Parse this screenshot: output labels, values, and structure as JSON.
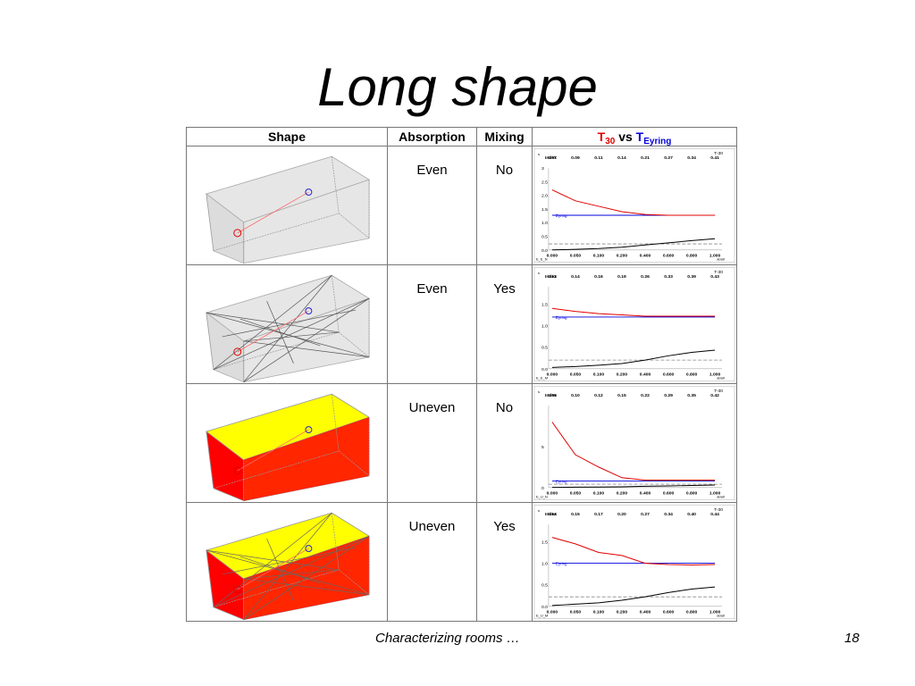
{
  "slide": {
    "title": "Long shape",
    "footer_text": "Characterizing rooms …",
    "page_number": "18"
  },
  "table": {
    "headers": {
      "shape": "Shape",
      "absorption": "Absorption",
      "mixing": "Mixing",
      "t30": "T",
      "t30_sub": "30",
      "vs": "vs",
      "teyring": "T",
      "teyring_sub": "Eyring"
    },
    "rows": [
      {
        "absorption": "Even",
        "mixing": "No",
        "box_style": "plain",
        "scatter": false,
        "graph": {
          "index_label": "Index",
          "index_values": [
            "0.07",
            "0.09",
            "0.11",
            "0.14",
            "0.21",
            "0.27",
            "0.34",
            "0.41"
          ],
          "x_ticks": [
            "0.000",
            "0.050",
            "0.100",
            "0.200",
            "0.400",
            "0.600",
            "0.800",
            "1.000"
          ],
          "y_ticks": [
            "0.0",
            "0.5",
            "1.0",
            "1.5",
            "2.0",
            "2.5",
            "3"
          ],
          "y_max": 3,
          "t30": [
            2.2,
            1.8,
            1.6,
            1.4,
            1.3,
            1.27,
            1.27,
            1.27
          ],
          "eyring": 1.27,
          "index_curve": [
            0.0,
            0.02,
            0.05,
            0.1,
            0.18,
            0.26,
            0.34,
            0.41
          ],
          "dashed": 0.22,
          "eyring_label": "Eyring",
          "corner_label": "T-30",
          "bottom_left_label": "E_E_N",
          "bottom_right_label": "a0a0"
        }
      },
      {
        "absorption": "Even",
        "mixing": "Yes",
        "box_style": "plain",
        "scatter": true,
        "graph": {
          "index_label": "Index",
          "index_values": [
            "0.13",
            "0.14",
            "0.16",
            "0.19",
            "0.26",
            "0.33",
            "0.39",
            "0.43"
          ],
          "x_ticks": [
            "0.000",
            "0.050",
            "0.100",
            "0.200",
            "0.400",
            "0.600",
            "0.800",
            "1.000"
          ],
          "y_ticks": [
            "0.0",
            "0.5",
            "1.0",
            "1.5"
          ],
          "y_max": 1.9,
          "t30": [
            1.4,
            1.33,
            1.28,
            1.25,
            1.22,
            1.22,
            1.22,
            1.22
          ],
          "eyring": 1.2,
          "index_curve": [
            0.03,
            0.05,
            0.08,
            0.12,
            0.2,
            0.3,
            0.38,
            0.43
          ],
          "dashed": 0.2,
          "eyring_label": "Eyring",
          "corner_label": "T-30",
          "bottom_left_label": "E_E_M",
          "bottom_right_label": "a0a0"
        }
      },
      {
        "absorption": "Uneven",
        "mixing": "No",
        "box_style": "colored",
        "scatter": false,
        "graph": {
          "index_label": "Index",
          "index_values": [
            "0.09",
            "0.10",
            "0.12",
            "0.15",
            "0.22",
            "0.29",
            "0.35",
            "0.42"
          ],
          "x_ticks": [
            "0.000",
            "0.050",
            "0.100",
            "0.200",
            "0.400",
            "0.600",
            "0.800",
            "1.000"
          ],
          "y_ticks": [
            "0",
            "5"
          ],
          "y_max": 10,
          "t30": [
            8,
            4,
            2.5,
            1.2,
            0.9,
            0.9,
            0.9,
            0.9
          ],
          "eyring": 0.8,
          "index_curve": [
            0.02,
            0.04,
            0.06,
            0.08,
            0.15,
            0.2,
            0.25,
            0.3
          ],
          "dashed": 0.4,
          "eyring_label": "Eyring",
          "corner_label": "T-30",
          "bottom_left_label": "E_U_N",
          "bottom_right_label": "a0a0"
        }
      },
      {
        "absorption": "Uneven",
        "mixing": "Yes",
        "box_style": "colored",
        "scatter": true,
        "graph": {
          "index_label": "Index",
          "index_values": [
            "0.14",
            "0.15",
            "0.17",
            "0.20",
            "0.27",
            "0.34",
            "0.40",
            "0.44"
          ],
          "x_ticks": [
            "0.000",
            "0.050",
            "0.100",
            "0.200",
            "0.400",
            "0.600",
            "0.800",
            "1.000"
          ],
          "y_ticks": [
            "0.0",
            "0.5",
            "1.0",
            "1.5"
          ],
          "y_max": 1.9,
          "t30": [
            1.6,
            1.45,
            1.25,
            1.18,
            1.0,
            0.97,
            0.96,
            0.97
          ],
          "eyring": 1.0,
          "index_curve": [
            0.02,
            0.05,
            0.08,
            0.14,
            0.22,
            0.32,
            0.4,
            0.45
          ],
          "dashed": 0.22,
          "eyring_label": "Eyring",
          "corner_label": "T-30",
          "bottom_left_label": "E_U_M",
          "bottom_right_label": "a0a0"
        }
      }
    ]
  },
  "colors": {
    "t30_line": "#e00000",
    "eyring_line": "#0000dd",
    "index_line": "#000000",
    "box_floor": "#ff0000",
    "box_walls": "#ffff00",
    "box_gray": "#e6e6e6"
  }
}
